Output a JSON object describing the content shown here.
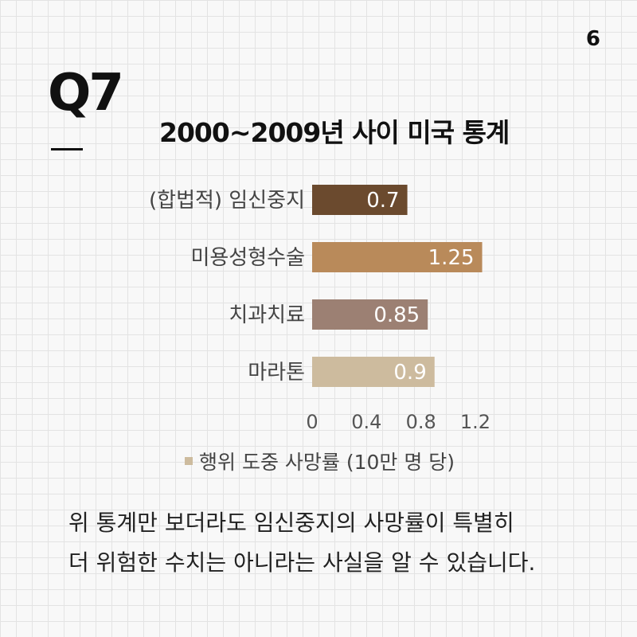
{
  "page_number": "6",
  "question_label": "Q7",
  "body_text": {
    "line1": "위 통계만 보더라도 임신중지의 사망률이 특별히",
    "line2": "더 위험한 수치는 아니라는 사실을 알 수 있습니다."
  },
  "colors": {
    "background": "#f8f8f8",
    "grid": "#e3e3e3"
  },
  "chart_data": {
    "type": "bar",
    "orientation": "horizontal",
    "title": "2000~2009년 사이 미국 통계",
    "categories": [
      "(합법적) 임신중지",
      "미용성형수술",
      "치과치료",
      "마라톤"
    ],
    "series": [
      {
        "name": "행위 도중 사망률 (10만 명 당)",
        "values": [
          0.7,
          1.25,
          0.85,
          0.9
        ],
        "value_labels": [
          "0.7",
          "1.25",
          "0.85",
          "0.9"
        ],
        "colors": [
          "#6b4a2e",
          "#b98a5a",
          "#9c8073",
          "#cdbb9e"
        ]
      }
    ],
    "xlim": [
      0,
      1.2
    ],
    "x_ticks": [
      0,
      0.4,
      0.8,
      1.2
    ],
    "x_tick_labels": [
      "0",
      "0.4",
      "0.8",
      "1.2"
    ],
    "grid": false,
    "legend_position": "bottom",
    "legend_color": "#cdbb9e"
  }
}
